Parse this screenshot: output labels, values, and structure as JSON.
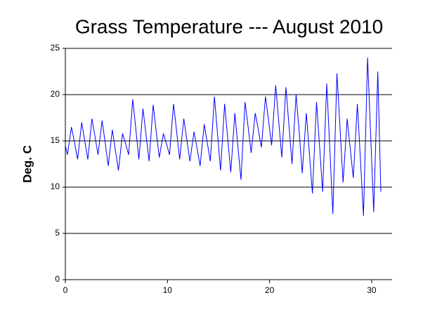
{
  "chart_data": {
    "type": "line",
    "title": "Grass Temperature --- August 2010",
    "y_label": "Deg. C",
    "xlim": [
      0,
      32
    ],
    "xticks": [
      0,
      10,
      20,
      30
    ],
    "ylim": [
      0,
      25
    ],
    "yticks": [
      0,
      5,
      10,
      15,
      20,
      25
    ],
    "grid": true,
    "series": [
      {
        "color": "#0000ff",
        "x": [
          0,
          0.2,
          0.6,
          0.9,
          1.2,
          1.6,
          1.9,
          2.2,
          2.6,
          2.9,
          3.2,
          3.6,
          3.9,
          4.2,
          4.6,
          4.9,
          5.2,
          5.6,
          5.9,
          6.2,
          6.6,
          6.9,
          7.2,
          7.6,
          7.9,
          8.2,
          8.6,
          8.9,
          9.2,
          9.6,
          9.9,
          10.2,
          10.6,
          10.9,
          11.2,
          11.6,
          11.9,
          12.2,
          12.6,
          12.9,
          13.2,
          13.6,
          13.9,
          14.2,
          14.6,
          14.9,
          15.2,
          15.6,
          15.9,
          16.2,
          16.6,
          16.9,
          17.2,
          17.6,
          17.9,
          18.2,
          18.6,
          18.9,
          19.2,
          19.6,
          19.9,
          20.2,
          20.6,
          20.9,
          21.2,
          21.6,
          21.9,
          22.2,
          22.6,
          22.9,
          23.2,
          23.6,
          23.9,
          24.2,
          24.6,
          24.9,
          25.2,
          25.6,
          25.9,
          26.2,
          26.6,
          26.9,
          27.2,
          27.6,
          27.9,
          28.2,
          28.6,
          28.9,
          29.2,
          29.6,
          29.9,
          30.2,
          30.6,
          30.9
        ],
        "values": [
          14.5,
          13.5,
          16.5,
          14.8,
          13,
          17,
          15,
          13,
          17.4,
          15.5,
          13.5,
          17.2,
          14.8,
          12.3,
          16.2,
          14,
          11.8,
          15.8,
          14.7,
          13.5,
          19.5,
          16.3,
          13,
          18.5,
          15.7,
          12.8,
          18.9,
          16,
          13.2,
          15.8,
          14.7,
          13.5,
          19,
          16,
          13,
          17.4,
          15.1,
          12.8,
          16,
          14.2,
          12.3,
          16.8,
          14.8,
          12.8,
          19.8,
          15.8,
          11.8,
          19,
          15.3,
          11.6,
          18,
          14.4,
          10.8,
          19.2,
          16.5,
          13.7,
          18,
          16.2,
          14.3,
          19.8,
          17.2,
          14.5,
          21,
          17.1,
          13.2,
          20.8,
          16.7,
          12.5,
          20,
          16,
          11.5,
          18,
          13.7,
          9.3,
          19.2,
          14.4,
          9.5,
          21.2,
          14.2,
          7.1,
          22.3,
          16.4,
          10.5,
          17.4,
          14.2,
          11,
          19,
          13,
          6.9,
          24,
          15.7,
          7.3,
          22.5,
          9.5
        ]
      }
    ]
  }
}
